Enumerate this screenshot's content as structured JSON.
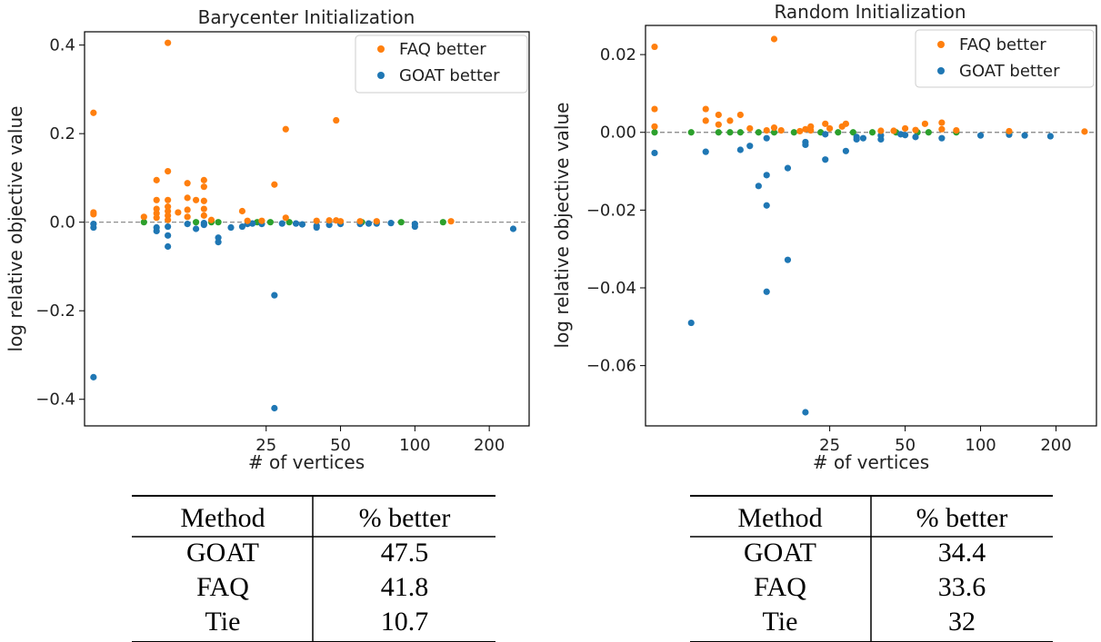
{
  "colors": {
    "faq": "#ff7f0e",
    "goat": "#1f77b4",
    "tie": "#2ca02c"
  },
  "chart_data": [
    {
      "type": "scatter",
      "title": "Barycenter Initialization",
      "xlabel": "# of vertices",
      "ylabel": "log relative objective value",
      "xscale": "log",
      "xlim": [
        4.6,
        290
      ],
      "ylim": [
        -0.46,
        0.43
      ],
      "xticks": [
        25,
        50,
        100,
        200
      ],
      "yticks": [
        -0.4,
        -0.2,
        0.0,
        0.2,
        0.4
      ],
      "ytick_labels": [
        "−0.4",
        "−0.2",
        "0.0",
        "0.2",
        "0.4"
      ],
      "grid": false,
      "legend": "top-right",
      "reference_line_y": 0,
      "series": [
        {
          "name": "FAQ better",
          "color": "faq",
          "points": [
            [
              5,
              0.247
            ],
            [
              5,
              0.022
            ],
            [
              5,
              0.018
            ],
            [
              8,
              0.012
            ],
            [
              9,
              0.095
            ],
            [
              9,
              0.05
            ],
            [
              9,
              0.03
            ],
            [
              9,
              0.02
            ],
            [
              9,
              0.01
            ],
            [
              10,
              0.405
            ],
            [
              10,
              0.115
            ],
            [
              10,
              0.05
            ],
            [
              10,
              0.035
            ],
            [
              10,
              0.025
            ],
            [
              10,
              0.015
            ],
            [
              10,
              0.005
            ],
            [
              11,
              0.022
            ],
            [
              12,
              0.088
            ],
            [
              12,
              0.055
            ],
            [
              12,
              0.028
            ],
            [
              12,
              0.012
            ],
            [
              13,
              0.05
            ],
            [
              14,
              0.095
            ],
            [
              14,
              0.08
            ],
            [
              14,
              0.048
            ],
            [
              14,
              0.03
            ],
            [
              14,
              0.015
            ],
            [
              15,
              0.005
            ],
            [
              20,
              0.025
            ],
            [
              21,
              0.003
            ],
            [
              24,
              0.003
            ],
            [
              27,
              0.085
            ],
            [
              30,
              0.21
            ],
            [
              30,
              0.01
            ],
            [
              40,
              0.003
            ],
            [
              45,
              0.004
            ],
            [
              48,
              0.23
            ],
            [
              48,
              0.004
            ],
            [
              50,
              0.002
            ],
            [
              60,
              0.002
            ],
            [
              70,
              0.002
            ],
            [
              140,
              0.002
            ]
          ]
        },
        {
          "name": "GOAT better",
          "color": "goat",
          "points": [
            [
              5,
              -0.35
            ],
            [
              5,
              -0.012
            ],
            [
              5,
              -0.004
            ],
            [
              9,
              -0.012
            ],
            [
              9,
              -0.02
            ],
            [
              10,
              -0.03
            ],
            [
              10,
              -0.055
            ],
            [
              10,
              -0.01
            ],
            [
              12,
              -0.004
            ],
            [
              13,
              -0.015
            ],
            [
              14,
              -0.006
            ],
            [
              14,
              -0.002
            ],
            [
              16,
              -0.035
            ],
            [
              16,
              -0.045
            ],
            [
              18,
              -0.012
            ],
            [
              20,
              -0.01
            ],
            [
              21,
              -0.004
            ],
            [
              22,
              -0.003
            ],
            [
              24,
              -0.004
            ],
            [
              27,
              -0.165
            ],
            [
              27,
              -0.42
            ],
            [
              29,
              -0.003
            ],
            [
              33,
              -0.003
            ],
            [
              35,
              -0.005
            ],
            [
              40,
              -0.008
            ],
            [
              40,
              -0.012
            ],
            [
              45,
              -0.006
            ],
            [
              50,
              -0.004
            ],
            [
              60,
              -0.004
            ],
            [
              65,
              -0.003
            ],
            [
              70,
              -0.003
            ],
            [
              80,
              -0.002
            ],
            [
              100,
              -0.004
            ],
            [
              100,
              -0.01
            ],
            [
              250,
              -0.015
            ]
          ]
        },
        {
          "name": "",
          "color": "tie",
          "points": [
            [
              8,
              0
            ],
            [
              13,
              0
            ],
            [
              15,
              0
            ],
            [
              16,
              0
            ],
            [
              23,
              0
            ],
            [
              26,
              0
            ],
            [
              31,
              0
            ],
            [
              61,
              0
            ],
            [
              88,
              0
            ],
            [
              130,
              0
            ]
          ]
        }
      ]
    },
    {
      "type": "scatter",
      "title": "Random Initialization",
      "xlabel": "# of vertices",
      "ylabel": "log relative objective value",
      "xscale": "log",
      "xlim": [
        4.6,
        290
      ],
      "ylim": [
        -0.0755,
        0.0275
      ],
      "xticks": [
        25,
        50,
        100,
        200
      ],
      "yticks": [
        -0.06,
        -0.04,
        -0.02,
        0.0,
        0.02
      ],
      "ytick_labels": [
        "−0.06",
        "−0.04",
        "−0.02",
        "0.00",
        "0.02"
      ],
      "grid": false,
      "legend": "top-right",
      "reference_line_y": 0,
      "series": [
        {
          "name": "FAQ better",
          "color": "faq",
          "points": [
            [
              5,
              0.022
            ],
            [
              5,
              0.006
            ],
            [
              5,
              0.0015
            ],
            [
              8,
              0.006
            ],
            [
              8,
              0.003
            ],
            [
              9,
              0.0045
            ],
            [
              9,
              0.002
            ],
            [
              10,
              0.003
            ],
            [
              11,
              0.0045
            ],
            [
              12,
              0.001
            ],
            [
              14,
              0.0005
            ],
            [
              15,
              0.024
            ],
            [
              15,
              0.0012
            ],
            [
              16,
              0.0005
            ],
            [
              19,
              0.0003
            ],
            [
              20,
              0.0008
            ],
            [
              21,
              0.0015
            ],
            [
              21,
              0.0005
            ],
            [
              24,
              0.0022
            ],
            [
              25,
              0.001
            ],
            [
              28,
              0.0015
            ],
            [
              29,
              0.0022
            ],
            [
              40,
              0.0004
            ],
            [
              45,
              0.0004
            ],
            [
              50,
              0.001
            ],
            [
              55,
              0.0006
            ],
            [
              60,
              0.0022
            ],
            [
              70,
              0.0025
            ],
            [
              70,
              0.0008
            ],
            [
              80,
              0.0005
            ],
            [
              130,
              0.0003
            ],
            [
              260,
              0.0002
            ]
          ]
        },
        {
          "name": "GOAT better",
          "color": "goat",
          "points": [
            [
              5,
              -0.0053
            ],
            [
              7,
              -0.049
            ],
            [
              8,
              -0.005
            ],
            [
              11,
              -0.0045
            ],
            [
              12,
              -0.0035
            ],
            [
              13,
              -0.0138
            ],
            [
              14,
              -0.0015
            ],
            [
              14,
              -0.011
            ],
            [
              14,
              -0.0188
            ],
            [
              14,
              -0.041
            ],
            [
              17,
              -0.0092
            ],
            [
              17,
              -0.0328
            ],
            [
              20,
              -0.0025
            ],
            [
              20,
              -0.0032
            ],
            [
              20,
              -0.072
            ],
            [
              24,
              -0.0005
            ],
            [
              24,
              -0.007
            ],
            [
              29,
              -0.0048
            ],
            [
              32,
              -0.0012
            ],
            [
              32,
              -0.0018
            ],
            [
              34,
              -0.0015
            ],
            [
              40,
              -0.0018
            ],
            [
              40,
              -0.0008
            ],
            [
              48,
              -0.0005
            ],
            [
              50,
              -0.0007
            ],
            [
              55,
              -0.0012
            ],
            [
              70,
              -0.0015
            ],
            [
              100,
              -0.0008
            ],
            [
              130,
              -0.0006
            ],
            [
              150,
              -0.0008
            ],
            [
              190,
              -0.001
            ]
          ]
        },
        {
          "name": "",
          "color": "tie",
          "points": [
            [
              5,
              0
            ],
            [
              7,
              0
            ],
            [
              9,
              0
            ],
            [
              10,
              0
            ],
            [
              11,
              0
            ],
            [
              13,
              0
            ],
            [
              15,
              0
            ],
            [
              18,
              0
            ],
            [
              23,
              0
            ],
            [
              27,
              0
            ],
            [
              31,
              0
            ],
            [
              37,
              0
            ],
            [
              46,
              0
            ],
            [
              56,
              0
            ],
            [
              62,
              0
            ],
            [
              80,
              0
            ],
            [
              130,
              0
            ]
          ]
        }
      ]
    }
  ],
  "tables": [
    {
      "headers": [
        "Method",
        "% better"
      ],
      "rows": [
        [
          "GOAT",
          "47.5"
        ],
        [
          "FAQ",
          "41.8"
        ],
        [
          "Tie",
          "10.7"
        ]
      ]
    },
    {
      "headers": [
        "Method",
        "% better"
      ],
      "rows": [
        [
          "GOAT",
          "34.4"
        ],
        [
          "FAQ",
          "33.6"
        ],
        [
          "Tie",
          "32"
        ]
      ]
    }
  ]
}
